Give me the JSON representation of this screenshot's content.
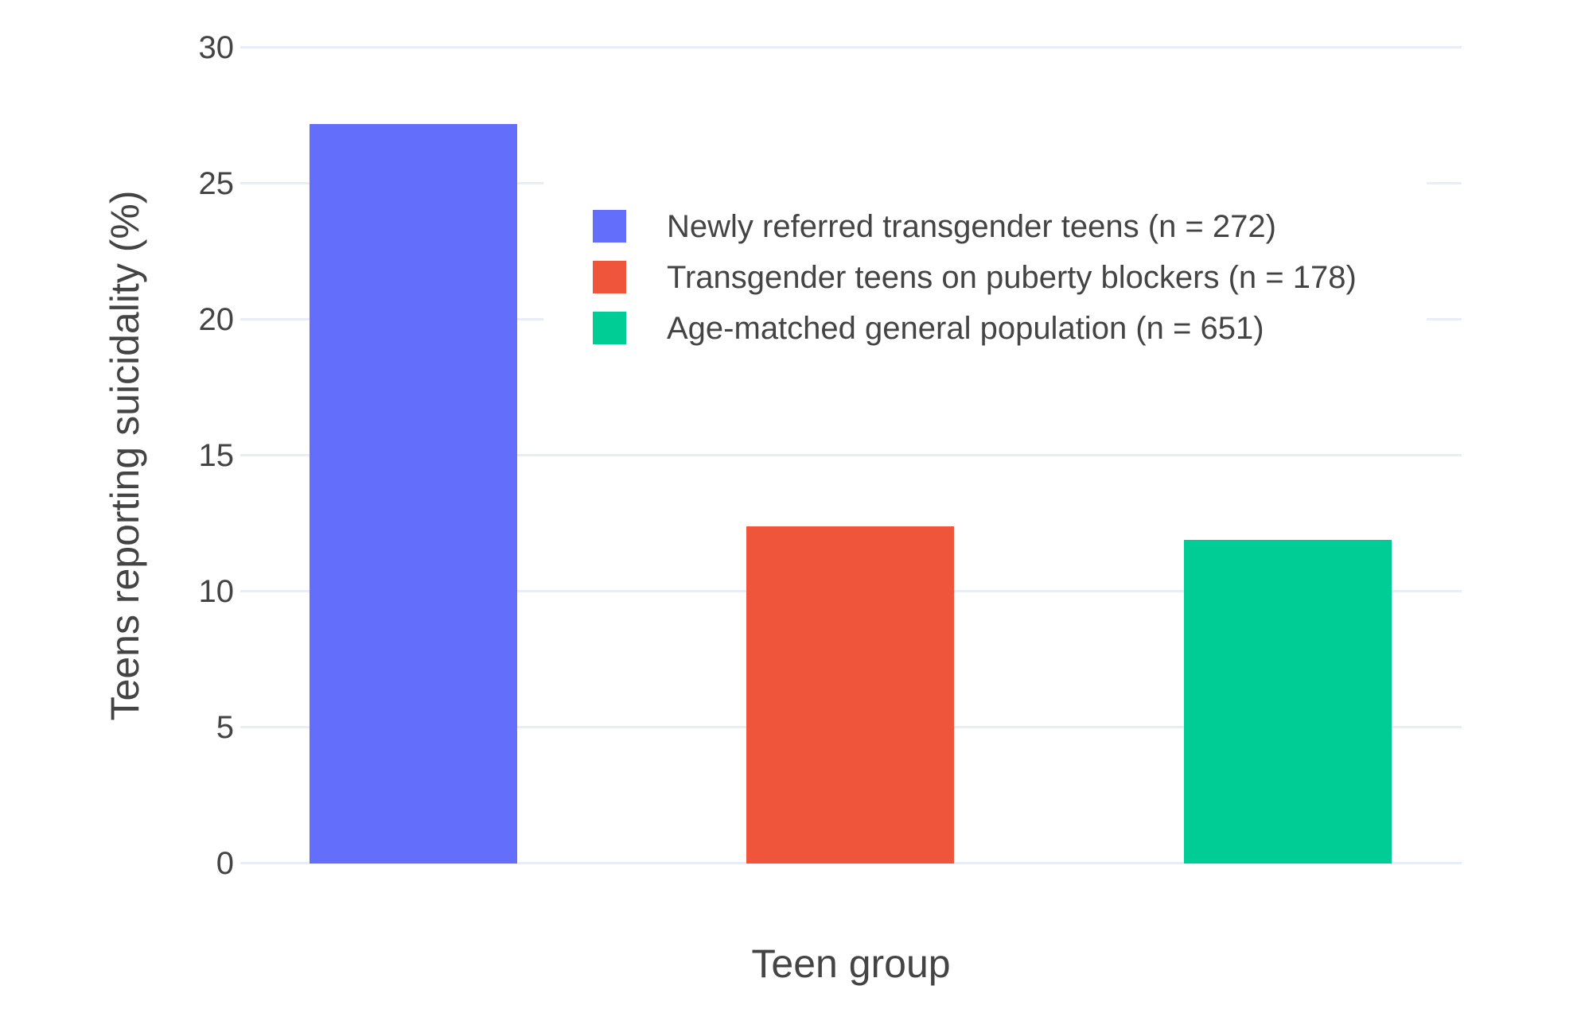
{
  "chart_data": {
    "type": "bar",
    "title": "",
    "xlabel": "Teen group",
    "ylabel": "Teens reporting suicidality (%)",
    "ylim": [
      0,
      30
    ],
    "yticks": [
      0,
      5,
      10,
      15,
      20,
      25,
      30
    ],
    "grid": true,
    "legend_position": "inside-top-right",
    "legend_background": "#ffffff",
    "background": "#ffffff",
    "gridline_color": "#E8EDF7",
    "text_color": "#444444",
    "categories": [
      "Newly referred transgender teens",
      "Transgender teens on puberty blockers",
      "Age-matched general population"
    ],
    "series": [
      {
        "name": "Newly referred transgender teens (n = 272)",
        "value": 27.2,
        "color": "#636EFA"
      },
      {
        "name": "Transgender teens on puberty blockers (n = 178)",
        "value": 12.4,
        "color": "#EF553B"
      },
      {
        "name": "Age-matched general population (n = 651)",
        "value": 11.9,
        "color": "#00CC96"
      }
    ]
  }
}
